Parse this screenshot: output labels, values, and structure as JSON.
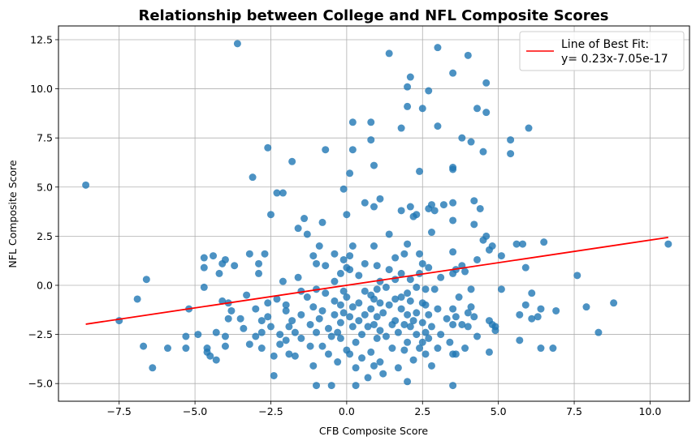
{
  "chart_data": {
    "type": "scatter",
    "title": "Relationship between College and NFL Composite Scores",
    "xlabel": "CFB Composite Score",
    "ylabel": "NFL Composite Score",
    "xlim": [
      -9.5,
      11.3
    ],
    "ylim": [
      -5.9,
      13.2
    ],
    "xticks": [
      -7.5,
      -5.0,
      -2.5,
      0.0,
      2.5,
      5.0,
      7.5,
      10.0
    ],
    "xtick_labels": [
      "−7.5",
      "−5.0",
      "−2.5",
      "0.0",
      "2.5",
      "5.0",
      "7.5",
      "10.0"
    ],
    "yticks": [
      -5.0,
      -2.5,
      0.0,
      2.5,
      5.0,
      7.5,
      10.0,
      12.5
    ],
    "ytick_labels": [
      "−5.0",
      "−2.5",
      "0.0",
      "2.5",
      "5.0",
      "7.5",
      "10.0",
      "12.5"
    ],
    "grid": true,
    "legend": {
      "placement": "top-right",
      "entries": [
        {
          "label_line1": "Line of Best Fit:",
          "label_line2": "y= 0.23x-7.05e-17"
        }
      ]
    },
    "colors": {
      "points": "#1f77b4",
      "fit_line": "#ff0000"
    },
    "fit_line": {
      "slope": 0.23,
      "intercept": -7.05e-17,
      "x_range": [
        -8.6,
        10.6
      ]
    },
    "series": [
      {
        "points": [
          [
            -8.6,
            5.1
          ],
          [
            -7.5,
            -1.8
          ],
          [
            -6.9,
            -0.7
          ],
          [
            -6.7,
            -3.1
          ],
          [
            -6.6,
            0.3
          ],
          [
            -6.4,
            -4.2
          ],
          [
            -5.9,
            -3.2
          ],
          [
            -5.3,
            -3.2
          ],
          [
            -5.3,
            -2.6
          ],
          [
            -5.2,
            -1.2
          ],
          [
            -4.9,
            -2.5
          ],
          [
            -4.7,
            1.4
          ],
          [
            -4.7,
            0.9
          ],
          [
            -4.7,
            -0.1
          ],
          [
            -4.6,
            -3.2
          ],
          [
            -4.6,
            -3.4
          ],
          [
            -4.5,
            -3.6
          ],
          [
            -4.4,
            1.5
          ],
          [
            -4.3,
            -3.8
          ],
          [
            -4.3,
            -2.4
          ],
          [
            -4.2,
            0.6
          ],
          [
            -4.1,
            1.1
          ],
          [
            -4.1,
            -0.8
          ],
          [
            -4.0,
            1.3
          ],
          [
            -4.0,
            -2.6
          ],
          [
            -4.0,
            -3.1
          ],
          [
            -3.9,
            -1.7
          ],
          [
            -3.9,
            -0.9
          ],
          [
            -3.8,
            -1.3
          ],
          [
            -3.7,
            1.0
          ],
          [
            -3.6,
            12.3
          ],
          [
            -3.5,
            -1.7
          ],
          [
            -3.4,
            -2.2
          ],
          [
            -3.3,
            -0.5
          ],
          [
            -3.2,
            1.6
          ],
          [
            -3.2,
            -3.0
          ],
          [
            -3.1,
            5.5
          ],
          [
            -3.0,
            -2.6
          ],
          [
            -3.0,
            -1.2
          ],
          [
            -2.9,
            1.1
          ],
          [
            -2.9,
            0.6
          ],
          [
            -2.8,
            -1.8
          ],
          [
            -2.8,
            -2.4
          ],
          [
            -2.8,
            -3.2
          ],
          [
            -2.7,
            1.6
          ],
          [
            -2.6,
            7.0
          ],
          [
            -2.6,
            -0.9
          ],
          [
            -2.6,
            -1.6
          ],
          [
            -2.5,
            3.6
          ],
          [
            -2.5,
            -2.1
          ],
          [
            -2.4,
            -3.6
          ],
          [
            -2.4,
            -4.6
          ],
          [
            -2.3,
            4.7
          ],
          [
            -2.3,
            -0.7
          ],
          [
            -2.2,
            -2.5
          ],
          [
            -2.2,
            -3.0
          ],
          [
            -2.1,
            4.7
          ],
          [
            -2.1,
            0.2
          ],
          [
            -2.0,
            -1.0
          ],
          [
            -2.0,
            -1.3
          ],
          [
            -2.0,
            -2.8
          ],
          [
            -1.9,
            -3.5
          ],
          [
            -1.9,
            -2.1
          ],
          [
            -1.8,
            6.3
          ],
          [
            -1.8,
            -1.8
          ],
          [
            -1.7,
            -2.4
          ],
          [
            -1.7,
            -3.6
          ],
          [
            -1.6,
            2.9
          ],
          [
            -1.6,
            0.4
          ],
          [
            -1.5,
            -0.3
          ],
          [
            -1.5,
            -1.5
          ],
          [
            -1.5,
            -2.7
          ],
          [
            -1.4,
            3.4
          ],
          [
            -1.3,
            2.6
          ],
          [
            -1.3,
            -0.6
          ],
          [
            -1.2,
            -2.0
          ],
          [
            -1.2,
            -3.1
          ],
          [
            -1.1,
            1.5
          ],
          [
            -1.1,
            -1.1
          ],
          [
            -1.1,
            -4.1
          ],
          [
            -1.0,
            1.1
          ],
          [
            -1.0,
            -0.2
          ],
          [
            -1.0,
            -2.4
          ],
          [
            -1.0,
            -5.1
          ],
          [
            -0.9,
            2.0
          ],
          [
            -0.9,
            -1.7
          ],
          [
            -0.8,
            3.2
          ],
          [
            -0.8,
            -1.3
          ],
          [
            -0.8,
            -3.1
          ],
          [
            -0.7,
            6.9
          ],
          [
            -0.7,
            1.0
          ],
          [
            -0.7,
            -0.4
          ],
          [
            -0.6,
            -2.2
          ],
          [
            -0.6,
            -3.5
          ],
          [
            -0.5,
            -5.1
          ],
          [
            -0.5,
            -2.6
          ],
          [
            -0.4,
            1.6
          ],
          [
            -0.4,
            0.2
          ],
          [
            -0.4,
            -0.8
          ],
          [
            -0.4,
            -1.5
          ],
          [
            -0.3,
            -2.4
          ],
          [
            -0.3,
            -3.9
          ],
          [
            -0.2,
            0.6
          ],
          [
            -0.2,
            -1.0
          ],
          [
            -0.2,
            -1.9
          ],
          [
            -0.2,
            -2.7
          ],
          [
            -0.1,
            4.9
          ],
          [
            -0.1,
            1.3
          ],
          [
            -0.1,
            -0.3
          ],
          [
            -0.1,
            -1.4
          ],
          [
            0.0,
            3.6
          ],
          [
            0.0,
            0.9
          ],
          [
            0.0,
            -0.6
          ],
          [
            0.0,
            -3.3
          ],
          [
            0.1,
            5.7
          ],
          [
            0.1,
            1.5
          ],
          [
            0.1,
            0.8
          ],
          [
            0.1,
            -1.6
          ],
          [
            0.1,
            -3.5
          ],
          [
            0.2,
            8.3
          ],
          [
            0.2,
            6.9
          ],
          [
            0.2,
            2.0
          ],
          [
            0.2,
            -1.1
          ],
          [
            0.2,
            -2.1
          ],
          [
            0.3,
            -2.9
          ],
          [
            0.3,
            -5.1
          ],
          [
            0.3,
            -4.2
          ],
          [
            0.4,
            0.5
          ],
          [
            0.4,
            -0.9
          ],
          [
            0.4,
            -1.8
          ],
          [
            0.5,
            -2.5
          ],
          [
            0.5,
            -3.7
          ],
          [
            0.6,
            4.2
          ],
          [
            0.6,
            1.1
          ],
          [
            0.6,
            -0.3
          ],
          [
            0.6,
            -1.5
          ],
          [
            0.7,
            -2.1
          ],
          [
            0.7,
            -4.7
          ],
          [
            0.8,
            8.3
          ],
          [
            0.8,
            7.4
          ],
          [
            0.8,
            -0.5
          ],
          [
            0.8,
            -1.2
          ],
          [
            0.8,
            -3.4
          ],
          [
            0.9,
            6.1
          ],
          [
            0.9,
            4.0
          ],
          [
            0.9,
            2.0
          ],
          [
            0.9,
            -0.7
          ],
          [
            0.9,
            -2.0
          ],
          [
            0.9,
            -4.1
          ],
          [
            1.0,
            1.0
          ],
          [
            1.0,
            -0.2
          ],
          [
            1.0,
            -1.6
          ],
          [
            1.0,
            -2.7
          ],
          [
            1.1,
            4.4
          ],
          [
            1.1,
            0.2
          ],
          [
            1.1,
            -0.9
          ],
          [
            1.1,
            -2.3
          ],
          [
            1.1,
            -3.9
          ],
          [
            1.2,
            -4.5
          ],
          [
            1.2,
            -1.4
          ],
          [
            1.3,
            -0.1
          ],
          [
            1.3,
            -2.6
          ],
          [
            1.4,
            11.8
          ],
          [
            1.4,
            2.6
          ],
          [
            1.4,
            0.8
          ],
          [
            1.4,
            -1.0
          ],
          [
            1.5,
            -2.0
          ],
          [
            1.5,
            -3.2
          ],
          [
            1.6,
            1.4
          ],
          [
            1.6,
            0.3
          ],
          [
            1.6,
            -0.7
          ],
          [
            1.6,
            -1.8
          ],
          [
            1.7,
            -2.4
          ],
          [
            1.7,
            -4.2
          ],
          [
            1.8,
            8.0
          ],
          [
            1.8,
            3.8
          ],
          [
            1.8,
            0.6
          ],
          [
            1.8,
            -0.6
          ],
          [
            1.8,
            -1.2
          ],
          [
            1.9,
            1.6
          ],
          [
            1.9,
            -2.0
          ],
          [
            1.9,
            -3.3
          ],
          [
            2.0,
            10.1
          ],
          [
            2.0,
            9.1
          ],
          [
            2.0,
            2.1
          ],
          [
            2.0,
            -0.4
          ],
          [
            2.0,
            -1.5
          ],
          [
            2.0,
            -2.9
          ],
          [
            2.0,
            -4.9
          ],
          [
            2.1,
            10.6
          ],
          [
            2.1,
            4.0
          ],
          [
            2.1,
            0.3
          ],
          [
            2.1,
            -0.8
          ],
          [
            2.1,
            -2.1
          ],
          [
            2.2,
            3.5
          ],
          [
            2.2,
            -1.8
          ],
          [
            2.2,
            -3.8
          ],
          [
            2.3,
            3.6
          ],
          [
            2.3,
            -0.1
          ],
          [
            2.3,
            -1.4
          ],
          [
            2.3,
            -2.5
          ],
          [
            2.4,
            5.8
          ],
          [
            2.4,
            1.6
          ],
          [
            2.4,
            0.6
          ],
          [
            2.4,
            -3.2
          ],
          [
            2.5,
            9.0
          ],
          [
            2.5,
            1.1
          ],
          [
            2.5,
            -0.9
          ],
          [
            2.5,
            -1.9
          ],
          [
            2.5,
            -2.9
          ],
          [
            2.6,
            -0.2
          ],
          [
            2.6,
            -1.0
          ],
          [
            2.6,
            -2.4
          ],
          [
            2.6,
            -3.5
          ],
          [
            2.7,
            9.9
          ],
          [
            2.7,
            3.9
          ],
          [
            2.7,
            0.9
          ],
          [
            2.7,
            -1.5
          ],
          [
            2.7,
            -2.7
          ],
          [
            2.8,
            2.7
          ],
          [
            2.8,
            4.1
          ],
          [
            2.8,
            -2.1
          ],
          [
            2.8,
            -4.1
          ],
          [
            2.9,
            3.8
          ],
          [
            2.9,
            -0.2
          ],
          [
            3.0,
            12.1
          ],
          [
            3.0,
            8.1
          ],
          [
            3.0,
            -1.2
          ],
          [
            3.0,
            -3.2
          ],
          [
            3.1,
            0.4
          ],
          [
            3.1,
            -2.5
          ],
          [
            3.2,
            4.1
          ],
          [
            3.3,
            -1.7
          ],
          [
            3.4,
            -2.9
          ],
          [
            3.5,
            10.8
          ],
          [
            3.5,
            6.0
          ],
          [
            3.5,
            5.9
          ],
          [
            3.5,
            4.2
          ],
          [
            3.5,
            3.3
          ],
          [
            3.5,
            1.7
          ],
          [
            3.5,
            0.6
          ],
          [
            3.5,
            -1.2
          ],
          [
            3.5,
            -2.0
          ],
          [
            3.5,
            -3.5
          ],
          [
            3.5,
            -5.1
          ],
          [
            3.6,
            0.8
          ],
          [
            3.6,
            -1.6
          ],
          [
            3.6,
            -3.5
          ],
          [
            3.7,
            -0.6
          ],
          [
            3.8,
            7.5
          ],
          [
            3.8,
            1.0
          ],
          [
            3.8,
            -2.0
          ],
          [
            3.9,
            -3.2
          ],
          [
            3.9,
            0.7
          ],
          [
            4.0,
            11.7
          ],
          [
            4.0,
            -1.4
          ],
          [
            4.0,
            -2.1
          ],
          [
            4.1,
            7.3
          ],
          [
            4.1,
            -0.2
          ],
          [
            4.1,
            -1.1
          ],
          [
            4.2,
            4.3
          ],
          [
            4.2,
            3.1
          ],
          [
            4.2,
            -1.6
          ],
          [
            4.3,
            9.0
          ],
          [
            4.3,
            1.3
          ],
          [
            4.3,
            -2.6
          ],
          [
            4.4,
            3.9
          ],
          [
            4.5,
            6.8
          ],
          [
            4.5,
            2.3
          ],
          [
            4.6,
            2.5
          ],
          [
            4.6,
            10.3
          ],
          [
            4.6,
            8.8
          ],
          [
            4.7,
            1.8
          ],
          [
            4.7,
            -1.8
          ],
          [
            4.7,
            -3.4
          ],
          [
            4.8,
            2.0
          ],
          [
            4.8,
            -2.0
          ],
          [
            4.9,
            -2.1
          ],
          [
            4.9,
            -2.3
          ],
          [
            5.1,
            1.5
          ],
          [
            5.1,
            -0.2
          ],
          [
            5.4,
            7.4
          ],
          [
            5.4,
            6.7
          ],
          [
            5.6,
            2.1
          ],
          [
            5.7,
            -1.5
          ],
          [
            5.7,
            -2.8
          ],
          [
            5.8,
            2.1
          ],
          [
            5.9,
            0.9
          ],
          [
            5.9,
            -1.0
          ],
          [
            6.0,
            8.0
          ],
          [
            6.1,
            -0.4
          ],
          [
            6.1,
            -1.7
          ],
          [
            6.3,
            -1.6
          ],
          [
            6.4,
            -1.2
          ],
          [
            6.5,
            2.2
          ],
          [
            6.4,
            -3.2
          ],
          [
            6.8,
            -3.2
          ],
          [
            6.9,
            -1.3
          ],
          [
            7.6,
            0.5
          ],
          [
            7.9,
            -1.1
          ],
          [
            8.3,
            -2.4
          ],
          [
            8.8,
            -0.9
          ],
          [
            10.6,
            2.1
          ]
        ]
      }
    ]
  }
}
